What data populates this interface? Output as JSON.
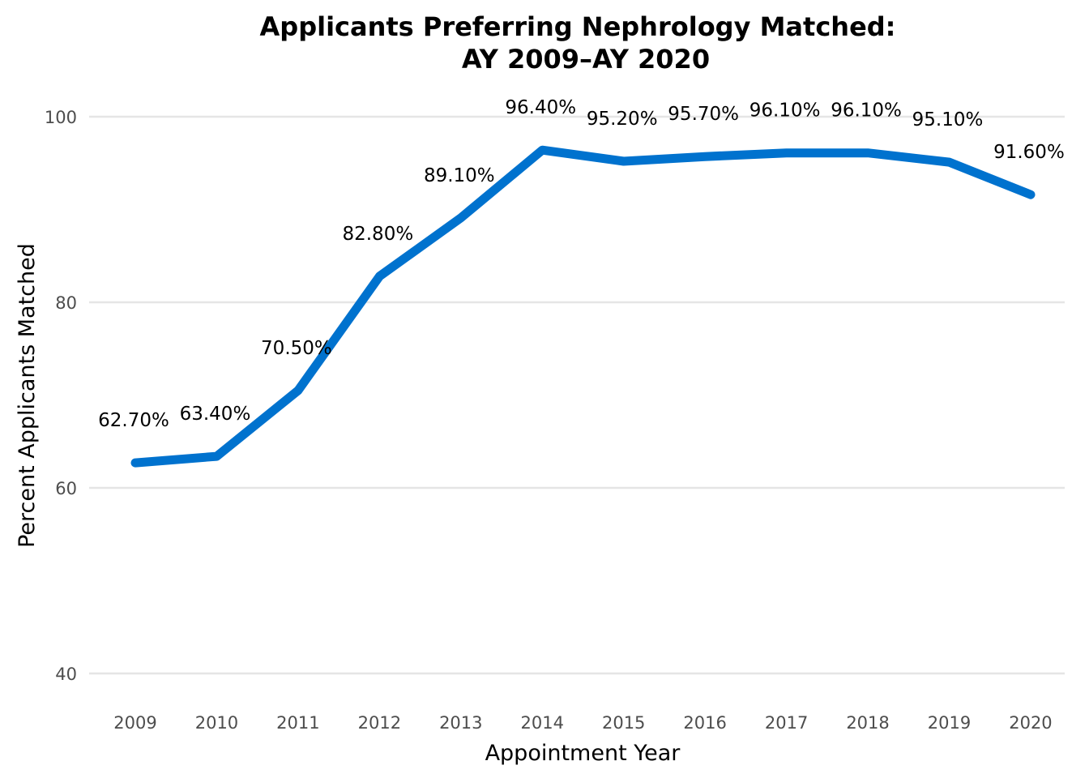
{
  "chart_data": {
    "type": "line",
    "title": "Applicants Preferring Nephrology Matched:",
    "subtitle": "AY 2009–AY 2020",
    "xlabel": "Appointment Year",
    "ylabel": "Percent Applicants Matched",
    "categories": [
      "2009",
      "2010",
      "2011",
      "2012",
      "2013",
      "2014",
      "2015",
      "2016",
      "2017",
      "2018",
      "2019",
      "2020"
    ],
    "series": [
      {
        "values": [
          62.7,
          63.4,
          70.5,
          82.8,
          89.1,
          96.4,
          95.2,
          95.7,
          96.1,
          96.1,
          95.1,
          91.6
        ],
        "labels": [
          "62.70%",
          "63.40%",
          "70.50%",
          "82.80%",
          "89.10%",
          "96.40%",
          "95.20%",
          "95.70%",
          "96.10%",
          "96.10%",
          "95.10%",
          "91.60%"
        ],
        "color": "#0072CE"
      }
    ],
    "ylim": [
      40,
      100
    ],
    "yticks": [
      "40",
      "60",
      "80",
      "100"
    ],
    "ytick_values": [
      40,
      60,
      80,
      100
    ],
    "grid": "horizontal",
    "legend": "none"
  }
}
